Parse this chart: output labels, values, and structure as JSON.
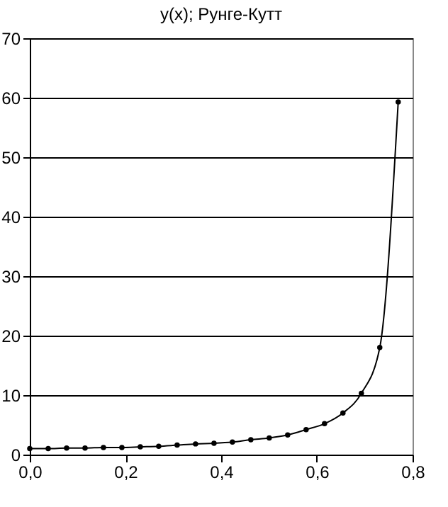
{
  "chart_data": {
    "type": "line",
    "title": "y(x); Рунге-Кутт",
    "x": [
      0,
      0.0385,
      0.077,
      0.1155,
      0.154,
      0.1925,
      0.231,
      0.2695,
      0.308,
      0.3465,
      0.385,
      0.4235,
      0.462,
      0.5005,
      0.539,
      0.5775,
      0.616,
      0.6545,
      0.693,
      0.7315,
      0.77
    ],
    "series": [
      {
        "color": "#000000",
        "values": [
          1.0,
          1.0,
          1.1,
          1.1,
          1.2,
          1.2,
          1.3,
          1.4,
          1.6,
          1.8,
          1.9,
          2.1,
          2.5,
          2.8,
          3.3,
          4.2,
          5.2,
          7.0,
          10.3,
          18,
          59.3
        ]
      }
    ],
    "xlim": [
      0,
      0.8
    ],
    "xticks": [
      {
        "value": 0,
        "label": "0,0"
      },
      {
        "value": 0.2,
        "label": "0,2"
      },
      {
        "value": 0.4,
        "label": "0,4"
      },
      {
        "value": 0.6,
        "label": "0,6"
      },
      {
        "value": 0.8,
        "label": "0,8"
      }
    ],
    "ylim": [
      0,
      70
    ],
    "yticks": [
      0,
      10,
      20,
      30,
      40,
      50,
      60,
      70
    ],
    "grid": "y",
    "marker": "circle",
    "line_style": "solid"
  }
}
